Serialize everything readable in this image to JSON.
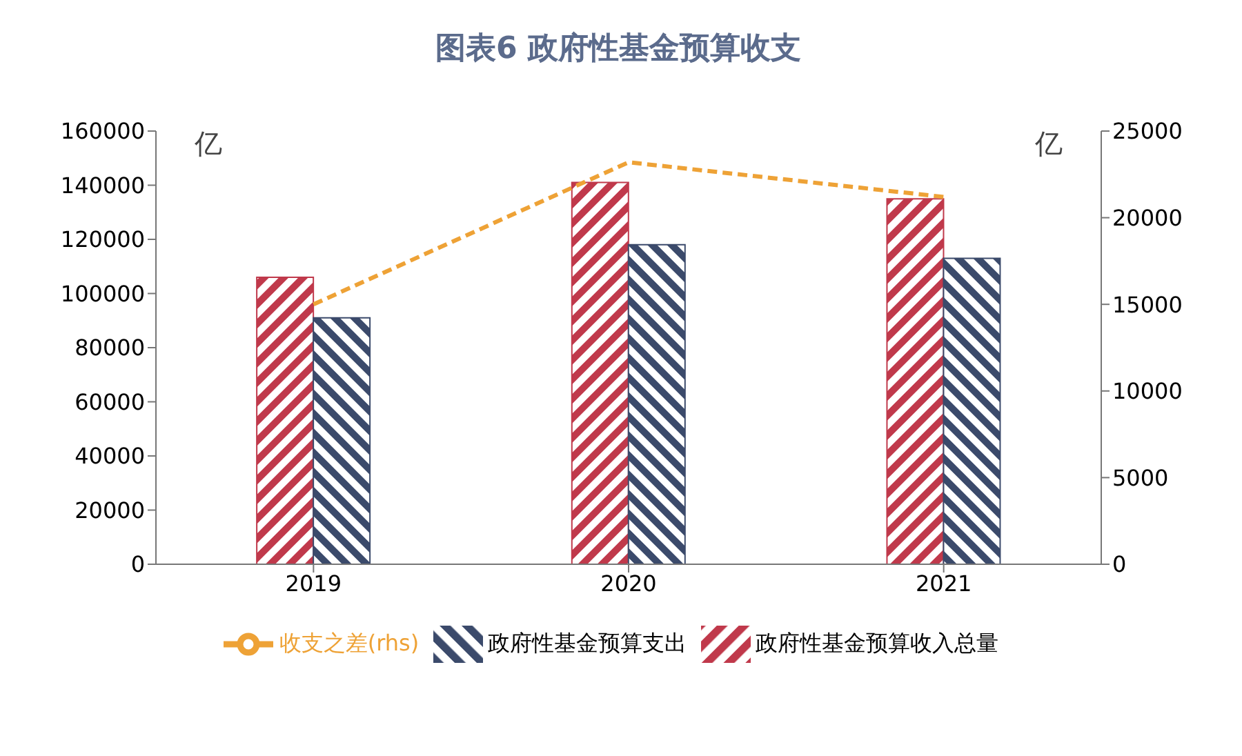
{
  "chart_data": {
    "type": "bar",
    "title": "图表6  政府性基金预算收支",
    "ylabel": "亿",
    "y2label": "亿",
    "categories": [
      "2019",
      "2020",
      "2021"
    ],
    "series": [
      {
        "name": "政府性基金预算收入总量",
        "color": "#c0394b",
        "values": [
          106000,
          141000,
          135000
        ]
      },
      {
        "name": "政府性基金预算支出",
        "color": "#3b4a6b",
        "values": [
          91000,
          118000,
          113000
        ]
      },
      {
        "name": "收支之差(rhs)",
        "type": "line",
        "axis": "y2",
        "color": "#eea236",
        "line_style": "dashed",
        "marker": "none",
        "values": [
          15000,
          23200,
          21200
        ]
      }
    ],
    "ylim": [
      0,
      160000
    ],
    "yticks": [
      0,
      20000,
      40000,
      60000,
      80000,
      100000,
      120000,
      140000,
      160000
    ],
    "y2lim": [
      0,
      25000
    ],
    "y2ticks": [
      0,
      5000,
      10000,
      15000,
      20000,
      25000
    ],
    "grid": false,
    "legend": "bottom"
  }
}
